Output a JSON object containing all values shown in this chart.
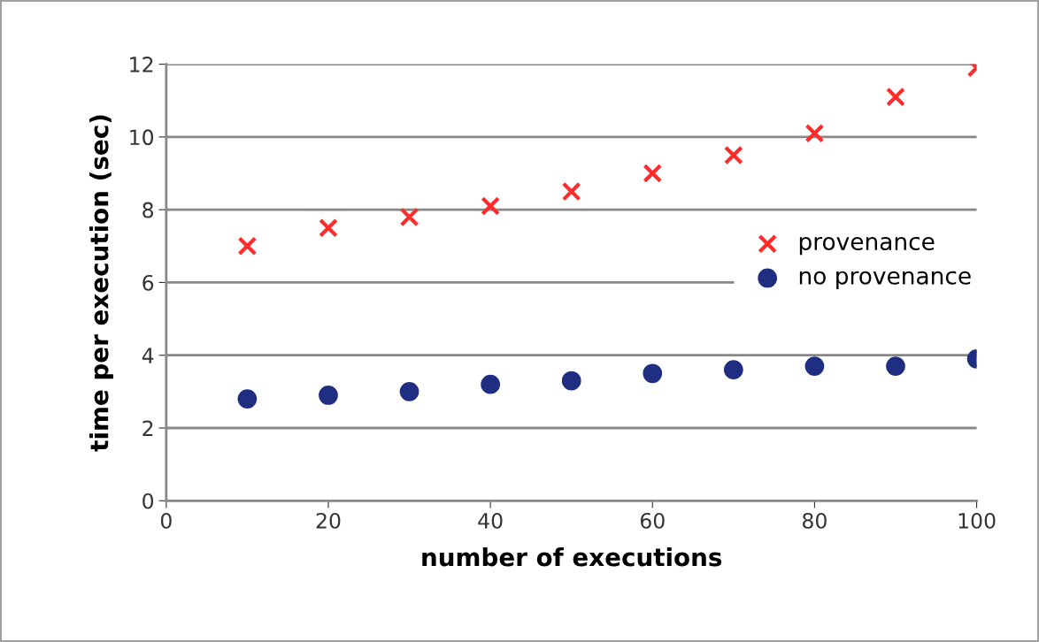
{
  "chart_data": {
    "type": "scatter",
    "xlabel": "number of executions",
    "ylabel": "time per execution (sec)",
    "x": [
      10,
      20,
      30,
      40,
      50,
      60,
      70,
      80,
      90,
      100
    ],
    "series": [
      {
        "name": "provenance",
        "color": "#ff2a2a",
        "marker": "cross",
        "values": [
          7.0,
          7.5,
          7.8,
          8.1,
          8.5,
          9.0,
          9.5,
          10.1,
          11.1,
          11.9
        ]
      },
      {
        "name": "no provenance",
        "color": "#1f2e80",
        "marker": "circle",
        "values": [
          2.8,
          2.9,
          3.0,
          3.2,
          3.3,
          3.5,
          3.6,
          3.7,
          3.7,
          3.9
        ]
      }
    ],
    "xlim": [
      0,
      100
    ],
    "ylim": [
      0,
      12
    ],
    "xticks": [
      0,
      20,
      40,
      60,
      80,
      100
    ],
    "yticks": [
      0,
      2,
      4,
      6,
      8,
      10,
      12
    ],
    "grid": "y",
    "legend": "right"
  }
}
